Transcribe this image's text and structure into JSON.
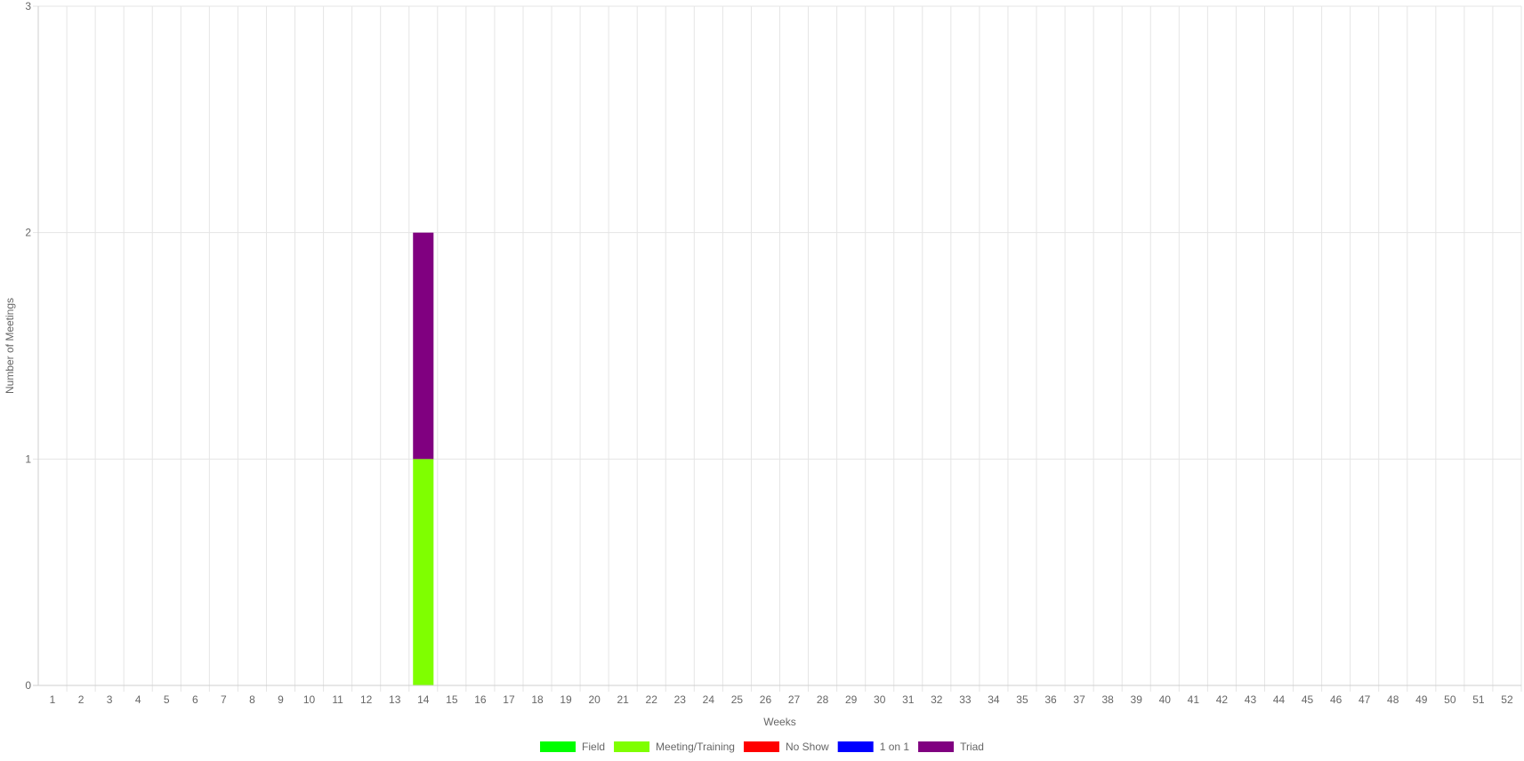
{
  "chart_data": {
    "type": "bar",
    "stacked": true,
    "title": "",
    "xlabel": "Weeks",
    "ylabel": "Number of Meetings",
    "ylim": [
      0,
      3
    ],
    "yticks": [
      0,
      1,
      2,
      3
    ],
    "grid": true,
    "legend_position": "bottom",
    "categories": [
      "1",
      "2",
      "3",
      "4",
      "5",
      "6",
      "7",
      "8",
      "9",
      "10",
      "11",
      "12",
      "13",
      "14",
      "15",
      "16",
      "17",
      "18",
      "19",
      "20",
      "21",
      "22",
      "23",
      "24",
      "25",
      "26",
      "27",
      "28",
      "29",
      "30",
      "31",
      "32",
      "33",
      "34",
      "35",
      "36",
      "37",
      "38",
      "39",
      "40",
      "41",
      "42",
      "43",
      "44",
      "45",
      "46",
      "47",
      "48",
      "49",
      "50",
      "51",
      "52"
    ],
    "series": [
      {
        "name": "Field",
        "color": "#00ff00",
        "values": [
          0,
          0,
          0,
          0,
          0,
          0,
          0,
          0,
          0,
          0,
          0,
          0,
          0,
          0,
          0,
          0,
          0,
          0,
          0,
          0,
          0,
          0,
          0,
          0,
          0,
          0,
          0,
          0,
          0,
          0,
          0,
          0,
          0,
          0,
          0,
          0,
          0,
          0,
          0,
          0,
          0,
          0,
          0,
          0,
          0,
          0,
          0,
          0,
          0,
          0,
          0,
          0
        ]
      },
      {
        "name": "Meeting/Training",
        "color": "#7fff00",
        "values": [
          0,
          0,
          0,
          0,
          0,
          0,
          0,
          0,
          0,
          0,
          0,
          0,
          0,
          1,
          0,
          0,
          0,
          0,
          0,
          0,
          0,
          0,
          0,
          0,
          0,
          0,
          0,
          0,
          0,
          0,
          0,
          0,
          0,
          0,
          0,
          0,
          0,
          0,
          0,
          0,
          0,
          0,
          0,
          0,
          0,
          0,
          0,
          0,
          0,
          0,
          0,
          0
        ]
      },
      {
        "name": "No Show",
        "color": "#ff0000",
        "values": [
          0,
          0,
          0,
          0,
          0,
          0,
          0,
          0,
          0,
          0,
          0,
          0,
          0,
          0,
          0,
          0,
          0,
          0,
          0,
          0,
          0,
          0,
          0,
          0,
          0,
          0,
          0,
          0,
          0,
          0,
          0,
          0,
          0,
          0,
          0,
          0,
          0,
          0,
          0,
          0,
          0,
          0,
          0,
          0,
          0,
          0,
          0,
          0,
          0,
          0,
          0,
          0
        ]
      },
      {
        "name": "1 on 1",
        "color": "#0000ff",
        "values": [
          0,
          0,
          0,
          0,
          0,
          0,
          0,
          0,
          0,
          0,
          0,
          0,
          0,
          0,
          0,
          0,
          0,
          0,
          0,
          0,
          0,
          0,
          0,
          0,
          0,
          0,
          0,
          0,
          0,
          0,
          0,
          0,
          0,
          0,
          0,
          0,
          0,
          0,
          0,
          0,
          0,
          0,
          0,
          0,
          0,
          0,
          0,
          0,
          0,
          0,
          0,
          0
        ]
      },
      {
        "name": "Triad",
        "color": "#800080",
        "values": [
          0,
          0,
          0,
          0,
          0,
          0,
          0,
          0,
          0,
          0,
          0,
          0,
          0,
          1,
          0,
          0,
          0,
          0,
          0,
          0,
          0,
          0,
          0,
          0,
          0,
          0,
          0,
          0,
          0,
          0,
          0,
          0,
          0,
          0,
          0,
          0,
          0,
          0,
          0,
          0,
          0,
          0,
          0,
          0,
          0,
          0,
          0,
          0,
          0,
          0,
          0,
          0
        ]
      }
    ]
  }
}
